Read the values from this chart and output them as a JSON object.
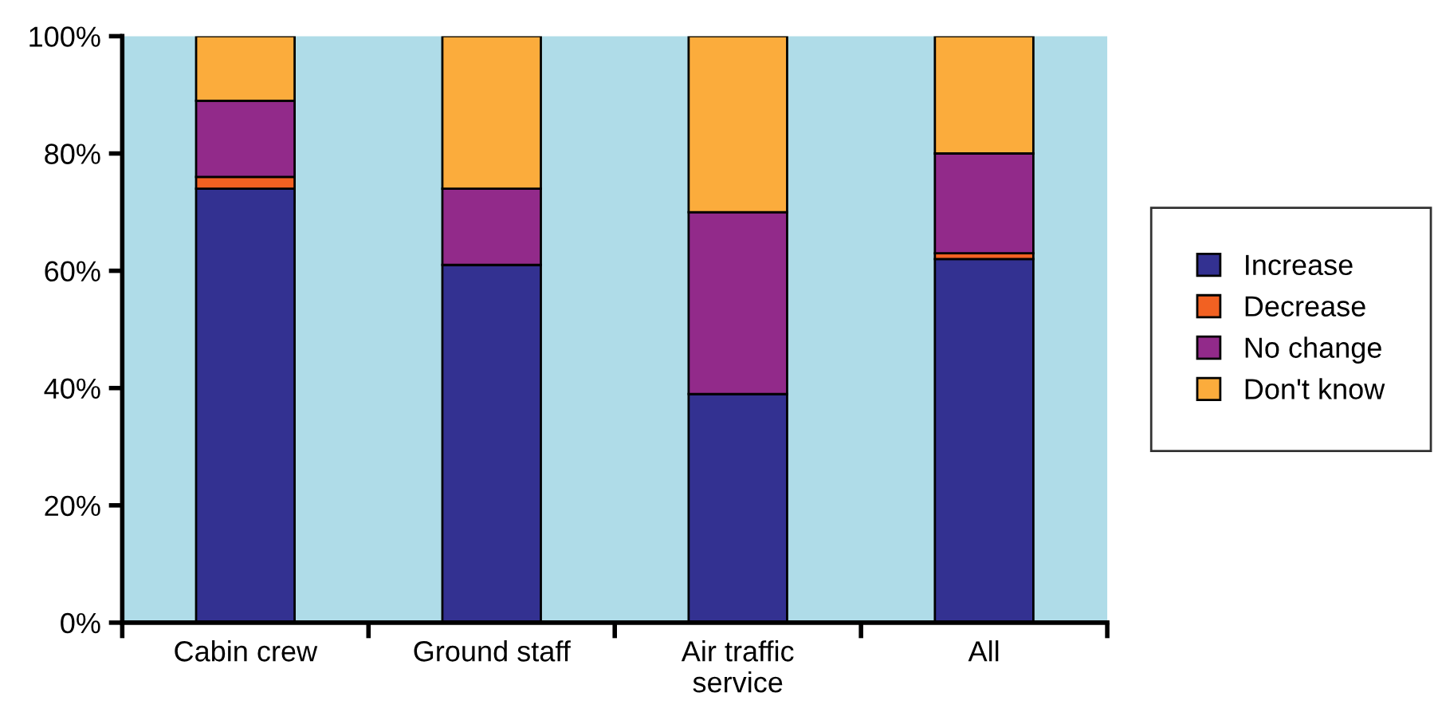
{
  "chart_data": {
    "type": "bar",
    "stacked": true,
    "categories": [
      "Cabin crew",
      "Ground staff",
      "Air traffic\nservice",
      "All"
    ],
    "series": [
      {
        "name": "Increase",
        "color": "#333191",
        "values": [
          74,
          61,
          39,
          62
        ]
      },
      {
        "name": "Decrease",
        "color": "#f26122",
        "values": [
          2,
          0,
          0,
          1
        ]
      },
      {
        "name": "No change",
        "color": "#922a8a",
        "values": [
          13,
          13,
          31,
          17
        ]
      },
      {
        "name": "Don't know",
        "color": "#fbac3c",
        "values": [
          11,
          26,
          30,
          20
        ]
      }
    ],
    "ylim": [
      0,
      100
    ],
    "yticks": [
      {
        "value": 0,
        "label": "0%"
      },
      {
        "value": 20,
        "label": "20%"
      },
      {
        "value": 40,
        "label": "40%"
      },
      {
        "value": 60,
        "label": "60%"
      },
      {
        "value": 80,
        "label": "80%"
      },
      {
        "value": 100,
        "label": "100%"
      }
    ],
    "grid": false,
    "legend": "right"
  }
}
